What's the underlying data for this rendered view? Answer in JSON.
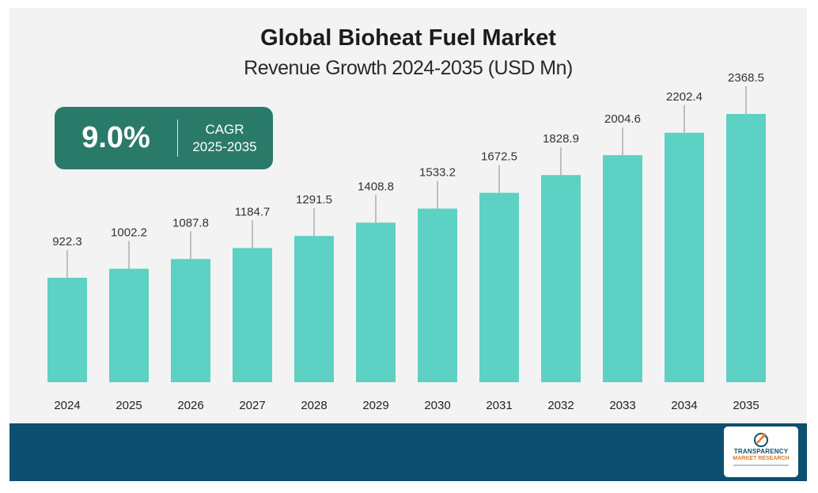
{
  "header": {
    "title": "Global Bioheat Fuel Market",
    "subtitle": "Revenue Growth 2024-2035 (USD Mn)"
  },
  "cagr": {
    "value": "9.0%",
    "label_line1": "CAGR",
    "label_line2": "2025-2035"
  },
  "logo": {
    "line1": "TRANSPARENCY",
    "line2": "MARKET RESEARCH"
  },
  "colors": {
    "bar": "#5dd1c3",
    "leader": "#8a8a8a",
    "cagr_box": "#2a7a6a",
    "footer": "#0d4f70",
    "background": "#f3f3f3"
  },
  "chart_data": {
    "type": "bar",
    "title": "Global Bioheat Fuel Market",
    "subtitle": "Revenue Growth 2024-2035 (USD Mn)",
    "xlabel": "",
    "ylabel": "",
    "categories": [
      "2024",
      "2025",
      "2026",
      "2027",
      "2028",
      "2029",
      "2030",
      "2031",
      "2032",
      "2033",
      "2034",
      "2035"
    ],
    "values": [
      922.3,
      1002.2,
      1087.8,
      1184.7,
      1291.5,
      1408.8,
      1533.2,
      1672.5,
      1828.9,
      2004.6,
      2202.4,
      2368.5
    ],
    "data_labels": [
      "922.3",
      "1002.2",
      "1087.8",
      "1184.7",
      "1291.5",
      "1408.8",
      "1533.2",
      "1672.5",
      "1828.9",
      "2004.6",
      "2202.4",
      "2368.5"
    ],
    "ylim": [
      0,
      2368.5
    ],
    "grid": false,
    "legend": "none"
  }
}
